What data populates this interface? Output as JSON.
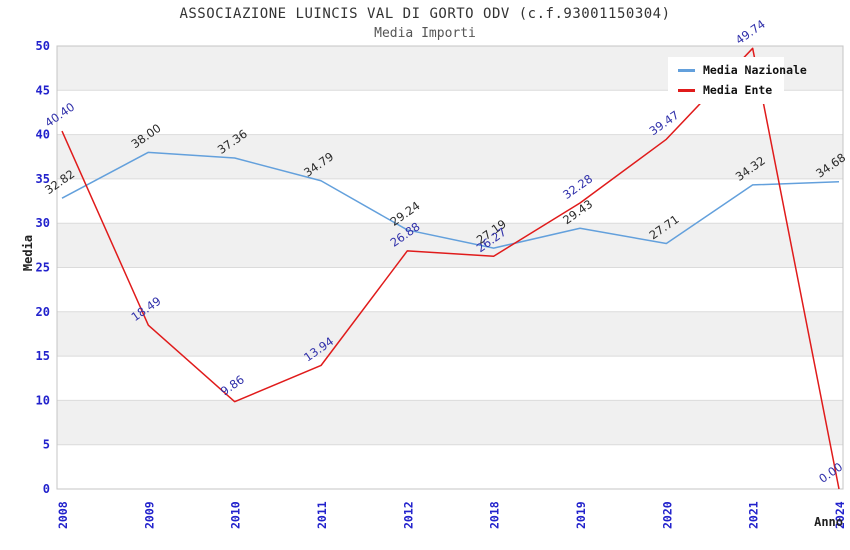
{
  "title": "ASSOCIAZIONE LUINCIS VAL DI GORTO ODV (c.f.93001150304)",
  "subtitle": "Media Importi",
  "axis": {
    "x_label": "Anno",
    "y_label": "Media"
  },
  "legend": [
    {
      "name": "Media Nazionale",
      "color": "#63a0dc"
    },
    {
      "name": "Media Ente",
      "color": "#e01b1b"
    }
  ],
  "colors": {
    "tick_blue": "#2222cc",
    "band_gray": "#f0f0f0",
    "grid_gray": "#dbdbdb",
    "border_gray": "#c5c5c5",
    "label_nazionale": "#2a2a2a",
    "label_ente": "#3030aa"
  },
  "chart_data": {
    "type": "line",
    "title": "ASSOCIAZIONE LUINCIS VAL DI GORTO ODV (c.f.93001150304)",
    "subtitle": "Media Importi",
    "xlabel": "Anno",
    "ylabel": "Media",
    "categories": [
      "2008",
      "2009",
      "2010",
      "2011",
      "2012",
      "2018",
      "2019",
      "2020",
      "2021",
      "2024"
    ],
    "series": [
      {
        "name": "Media Nazionale",
        "color": "#63a0dc",
        "label_color": "#2a2a2a",
        "values": [
          32.82,
          38.0,
          37.36,
          34.79,
          29.24,
          27.19,
          29.43,
          27.71,
          34.32,
          34.68
        ]
      },
      {
        "name": "Media Ente",
        "color": "#e01b1b",
        "label_color": "#3030aa",
        "values": [
          40.4,
          18.49,
          9.86,
          13.94,
          26.88,
          26.27,
          32.28,
          39.47,
          49.74,
          0.0
        ]
      }
    ],
    "ylim": [
      0,
      50
    ],
    "ytick_step": 5,
    "yticks": [
      0,
      5,
      10,
      15,
      20,
      25,
      30,
      35,
      40,
      45,
      50
    ],
    "grid": "on",
    "banded_background": true,
    "legend_position": "top-right",
    "value_label_decimals": 2,
    "value_label_rotation_deg": -35
  }
}
